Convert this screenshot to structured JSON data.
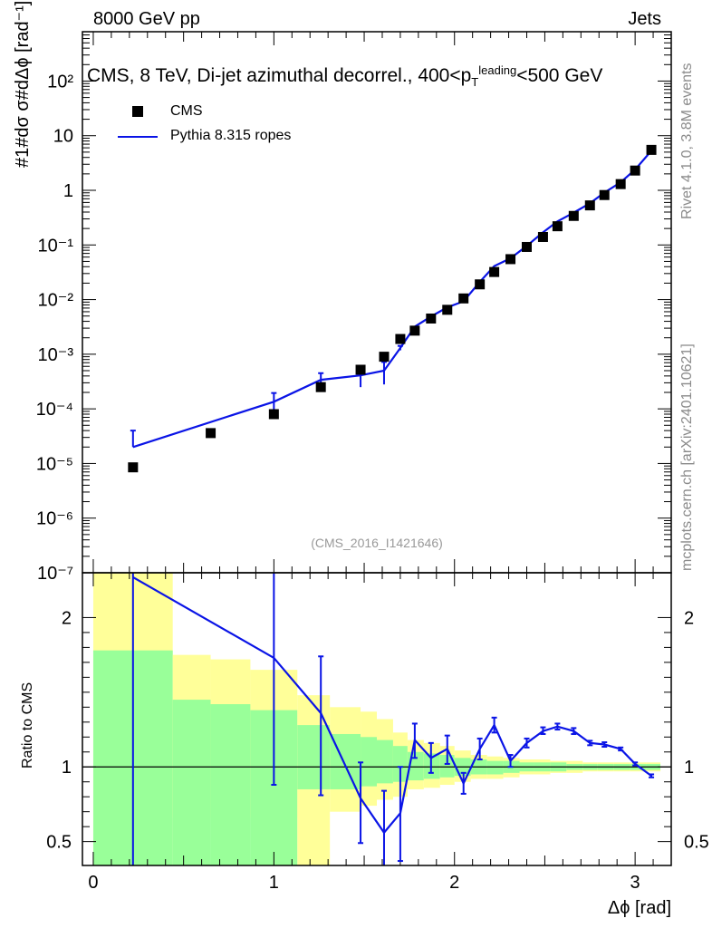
{
  "header": {
    "left": "8000 GeV pp",
    "right": "Jets"
  },
  "side_labels": {
    "top": "Rivet 4.1.0,  3.8M events",
    "bottom": "mcplots.cern.ch [arXiv:2401.10621]"
  },
  "colors": {
    "data": "#000000",
    "mc": "#0a14e6",
    "band_green": "#99ff99",
    "band_yellow": "#ffff99"
  },
  "chart_data": [
    {
      "type": "scatter",
      "title": "CMS, 8 TeV, Di-jet azimuthal decorrel., 400<p",
      "title_sub": "T",
      "title_sup": "leading",
      "title_tail": "<500 GeV",
      "ylabel": "#1#dσ σ#dΔϕ [rad⁻¹]",
      "yscale": "log",
      "ylim": [
        1e-07,
        800
      ],
      "xlim": [
        -0.06,
        3.2
      ],
      "yticks": [
        "10⁻⁷",
        "10⁻⁶",
        "10⁻⁵",
        "10⁻⁴",
        "10⁻³",
        "10⁻²",
        "10⁻¹",
        "1",
        "10",
        "10²"
      ],
      "annotation": "(CMS_2016_I1421646)",
      "legend": [
        "CMS",
        "Pythia 8.315 ropes"
      ],
      "series": [
        {
          "name": "CMS",
          "x": [
            0.22,
            0.65,
            1.0,
            1.26,
            1.48,
            1.61,
            1.7,
            1.78,
            1.87,
            1.96,
            2.05,
            2.14,
            2.22,
            2.31,
            2.4,
            2.49,
            2.57,
            2.66,
            2.75,
            2.83,
            2.92,
            3.0,
            3.09
          ],
          "y": [
            8.5e-06,
            3.6e-05,
            8e-05,
            0.00025,
            0.00052,
            0.0009,
            0.0019,
            0.0027,
            0.0045,
            0.0065,
            0.0105,
            0.019,
            0.032,
            0.055,
            0.092,
            0.14,
            0.22,
            0.34,
            0.53,
            0.82,
            1.3,
            2.3,
            5.5
          ]
        },
        {
          "name": "Pythia 8.315 ropes",
          "x": [
            0.22,
            1.0,
            1.26,
            1.48,
            1.61,
            1.7,
            1.78,
            1.87,
            1.96,
            2.05,
            2.14,
            2.22,
            2.31,
            2.4,
            2.49,
            2.57,
            2.66,
            2.75,
            2.83,
            2.92,
            3.0,
            3.09
          ],
          "y": [
            2e-05,
            0.000135,
            0.00034,
            0.00041,
            0.0005,
            0.0013,
            0.0032,
            0.0049,
            0.0072,
            0.0093,
            0.021,
            0.041,
            0.057,
            0.096,
            0.17,
            0.27,
            0.39,
            0.58,
            0.91,
            1.4,
            2.4,
            5.3
          ],
          "err_lo": [
            0.0,
            6e-05,
            0.00011,
            0.00016,
            0.00022,
            0.00012,
            0,
            0,
            0,
            0,
            0,
            0,
            0,
            0,
            0,
            0,
            0,
            0,
            0,
            0,
            0,
            0
          ],
          "err_hi": [
            2e-05,
            6e-05,
            0.00011,
            0.00016,
            0.00022,
            0.00012,
            0,
            0,
            0,
            0,
            0,
            0,
            0,
            0,
            0,
            0,
            0,
            0,
            0,
            0,
            0,
            0
          ]
        }
      ]
    },
    {
      "type": "line",
      "ylabel": "Ratio to CMS",
      "xlabel": "Δϕ [rad]",
      "ylim": [
        0.34,
        2.3
      ],
      "xlim": [
        -0.06,
        3.2
      ],
      "yticks": [
        0.5,
        1,
        2
      ],
      "ytick_labels": [
        "0.5",
        "1",
        "2"
      ],
      "xticks": [
        0,
        1,
        2,
        3
      ],
      "xtick_labels": [
        "0",
        "1",
        "2",
        "3"
      ],
      "bands": {
        "edges": [
          0.0,
          0.44,
          0.65,
          0.87,
          1.13,
          1.31,
          1.48,
          1.57,
          1.66,
          1.74,
          1.83,
          1.92,
          2.0,
          2.09,
          2.18,
          2.27,
          2.36,
          2.44,
          2.53,
          2.62,
          2.71,
          2.79,
          2.88,
          2.97,
          3.06,
          3.14
        ],
        "green_lo": [
          0.34,
          0.34,
          0.34,
          0.34,
          0.85,
          0.85,
          0.87,
          0.89,
          0.9,
          0.91,
          0.92,
          0.93,
          0.94,
          0.95,
          0.95,
          0.96,
          0.97,
          0.97,
          0.97,
          0.98,
          0.98,
          0.98,
          0.98,
          0.98,
          0.98
        ],
        "green_hi": [
          1.78,
          1.45,
          1.42,
          1.38,
          1.28,
          1.22,
          1.2,
          1.18,
          1.14,
          1.1,
          1.09,
          1.08,
          1.06,
          1.05,
          1.04,
          1.04,
          1.03,
          1.03,
          1.03,
          1.02,
          1.02,
          1.02,
          1.02,
          1.02,
          1.02
        ],
        "yellow_lo": [
          0.34,
          0.66,
          0.66,
          0.66,
          0.34,
          0.7,
          0.74,
          0.78,
          0.8,
          0.85,
          0.86,
          0.88,
          0.9,
          0.92,
          0.92,
          0.93,
          0.95,
          0.95,
          0.96,
          0.96,
          0.97,
          0.97,
          0.97,
          0.97,
          0.97
        ],
        "yellow_hi": [
          2.3,
          1.75,
          1.72,
          1.65,
          1.48,
          1.4,
          1.37,
          1.32,
          1.23,
          1.18,
          1.16,
          1.14,
          1.11,
          1.08,
          1.07,
          1.06,
          1.05,
          1.05,
          1.04,
          1.04,
          1.03,
          1.03,
          1.03,
          1.03,
          1.03
        ]
      },
      "series": [
        {
          "name": "Pythia 8.315 ropes / CMS",
          "x": [
            0.22,
            1.0,
            1.26,
            1.48,
            1.61,
            1.7,
            1.78,
            1.87,
            1.96,
            2.05,
            2.14,
            2.22,
            2.31,
            2.4,
            2.49,
            2.57,
            2.66,
            2.75,
            2.83,
            2.92,
            3.0,
            3.09
          ],
          "y": [
            2.27,
            1.73,
            1.36,
            0.79,
            0.56,
            0.69,
            1.18,
            1.06,
            1.12,
            0.89,
            1.12,
            1.28,
            1.04,
            1.16,
            1.24,
            1.27,
            1.24,
            1.16,
            1.15,
            1.12,
            1.02,
            0.94
          ],
          "err_lo": [
            1.95,
            0.85,
            0.55,
            0.3,
            0.28,
            0.32,
            0.12,
            0.1,
            0.1,
            0.07,
            0.07,
            0.05,
            0.04,
            0.03,
            0.02,
            0.02,
            0.02,
            0.015,
            0.015,
            0.01,
            0.01,
            0.01
          ],
          "err_hi": [
            0.6,
            0.6,
            0.38,
            0.24,
            0.28,
            0.31,
            0.11,
            0.1,
            0.09,
            0.07,
            0.07,
            0.05,
            0.04,
            0.03,
            0.025,
            0.02,
            0.02,
            0.015,
            0.015,
            0.01,
            0.01,
            0.01
          ]
        }
      ]
    }
  ]
}
